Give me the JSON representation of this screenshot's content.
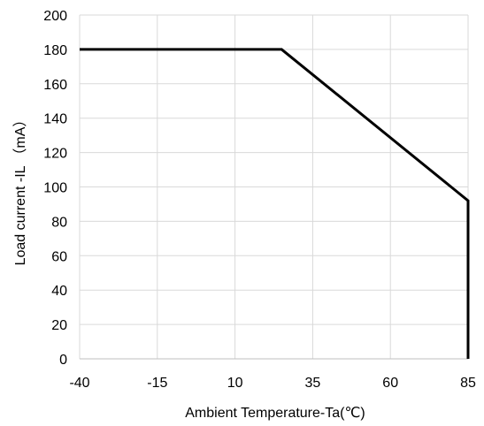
{
  "chart_data": {
    "type": "line",
    "title": "",
    "xlabel": "Ambient Temperature-Ta(℃)",
    "ylabel": "Load current -IL （mA）",
    "xlim": [
      -40,
      85
    ],
    "ylim": [
      0,
      200
    ],
    "x_ticks": [
      -40,
      -15,
      10,
      35,
      60,
      85
    ],
    "y_ticks": [
      0,
      20,
      40,
      60,
      80,
      100,
      120,
      140,
      160,
      180,
      200
    ],
    "grid": true,
    "legend": "none",
    "series": [
      {
        "color": "#000000",
        "points": [
          {
            "x": -40,
            "y": 180
          },
          {
            "x": 25,
            "y": 180
          },
          {
            "x": 85,
            "y": 92
          },
          {
            "x": 85,
            "y": 0
          }
        ]
      }
    ]
  }
}
